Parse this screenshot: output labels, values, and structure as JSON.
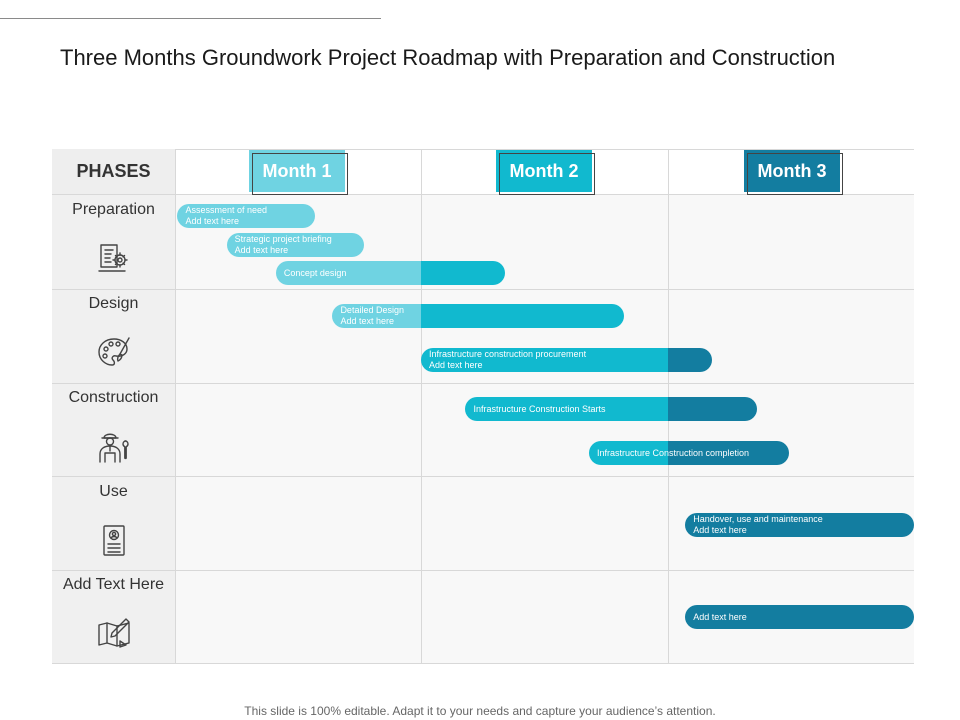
{
  "title": "Three Months Groundwork Project Roadmap with Preparation and Construction",
  "phases_header": "PHASES",
  "months": [
    {
      "label": "Month 1",
      "color": "#6fd3e2"
    },
    {
      "label": "Month 2",
      "color": "#11b9cf"
    },
    {
      "label": "Month 3",
      "color": "#137da0"
    }
  ],
  "phases": [
    {
      "label": "Preparation",
      "icon": "document-gear-icon"
    },
    {
      "label": "Design",
      "icon": "palette-brush-icon"
    },
    {
      "label": "Construction",
      "icon": "worker-wrench-icon"
    },
    {
      "label": "Use",
      "icon": "id-card-icon"
    },
    {
      "label": "Add Text Here",
      "icon": "blueprint-pencil-icon"
    }
  ],
  "tasks": [
    {
      "line1": "Assessment of need",
      "line2": "Add text here",
      "phase": 0,
      "start": 0.01,
      "end": 0.57
    },
    {
      "line1": "Strategic project briefing",
      "line2": "Add text here",
      "phase": 0,
      "start": 0.21,
      "end": 0.77
    },
    {
      "line1": "Concept design",
      "line2": "",
      "phase": 0,
      "start": 0.41,
      "end": 1.34
    },
    {
      "line1": "Detailed Design",
      "line2": "Add text here",
      "phase": 1,
      "start": 0.64,
      "end": 1.82
    },
    {
      "line1": "Infrastructure construction procurement",
      "line2": "Add text here",
      "phase": 1,
      "start": 1.0,
      "end": 2.18
    },
    {
      "line1": "Infrastructure Construction Starts",
      "line2": "",
      "phase": 2,
      "start": 1.18,
      "end": 2.36
    },
    {
      "line1": "Infrastructure Construction completion",
      "line2": "",
      "phase": 2,
      "start": 1.68,
      "end": 2.49
    },
    {
      "line1": "Handover, use and maintenance",
      "line2": "Add text here",
      "phase": 3,
      "start": 2.07,
      "end": 3.0
    },
    {
      "line1": "Add text here",
      "line2": "",
      "phase": 4,
      "start": 2.07,
      "end": 3.0
    }
  ],
  "footer": "This slide is 100% editable. Adapt it to your needs and capture your audience’s attention."
}
